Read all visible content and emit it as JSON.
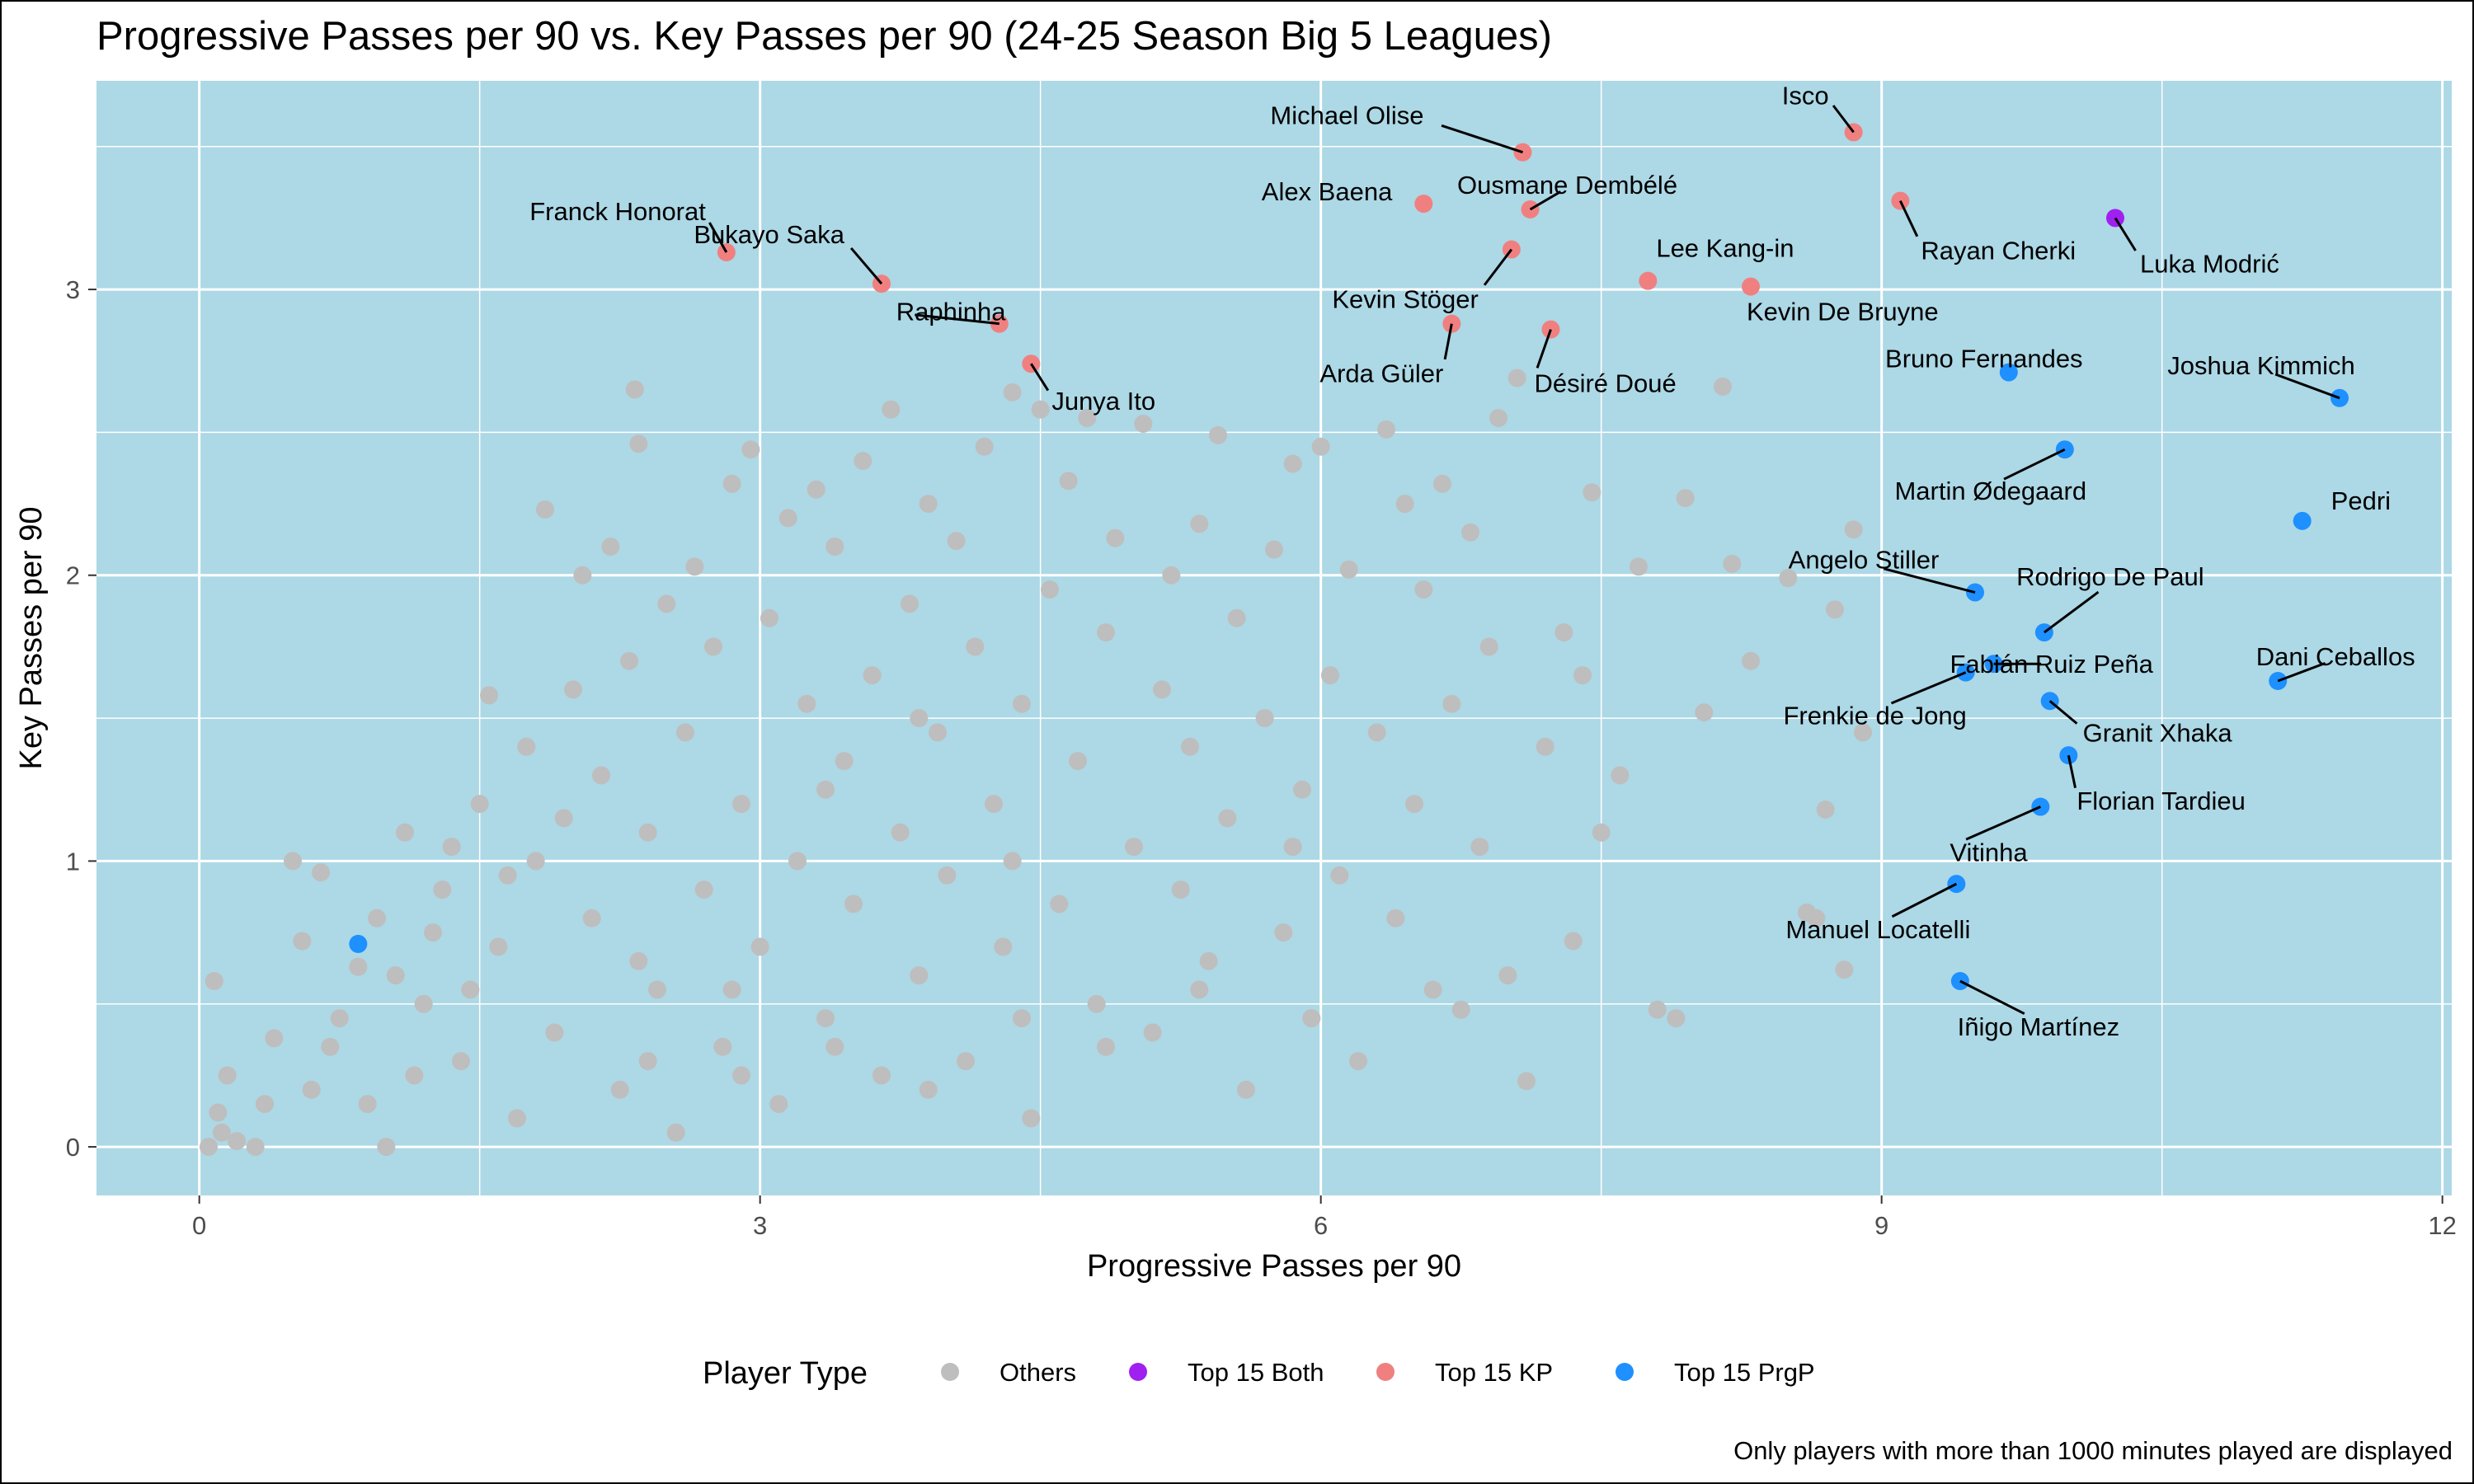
{
  "chart_data": {
    "type": "scatter",
    "title": "Progressive Passes per 90 vs. Key Passes per 90 (24-25 Season Big 5 Leagues)",
    "xlabel": "Progressive Passes per 90",
    "ylabel": "Key Passes per 90",
    "xlim": [
      -0.55,
      12.05
    ],
    "ylim": [
      -0.17,
      3.73
    ],
    "x_ticks": [
      0,
      3,
      6,
      9,
      12
    ],
    "y_ticks": [
      0,
      1,
      2,
      3
    ],
    "grid": true,
    "legend_position": "bottom",
    "legend_title": "Player Type",
    "caption": "Only players with more than 1000 minutes played are displayed",
    "colors": {
      "panel_background": "#add8e6",
      "grid": "#ffffff",
      "Others": "#bebebe",
      "Top 15 Both": "#a020f0",
      "Top 15 KP": "#f08080",
      "Top 15 PrgP": "#1e90ff"
    },
    "series": [
      {
        "name": "Top 15 Both",
        "points": [
          {
            "player": "Luka Modrić",
            "x": 10.25,
            "y": 3.25
          }
        ]
      },
      {
        "name": "Top 15 KP",
        "points": [
          {
            "player": "Michael Olise",
            "x": 7.08,
            "y": 3.48
          },
          {
            "player": "Isco",
            "x": 8.85,
            "y": 3.55
          },
          {
            "player": "Alex Baena",
            "x": 6.55,
            "y": 3.3
          },
          {
            "player": "Ousmane Dembélé",
            "x": 7.12,
            "y": 3.28
          },
          {
            "player": "Rayan Cherki",
            "x": 9.1,
            "y": 3.31
          },
          {
            "player": "Franck Honorat",
            "x": 2.82,
            "y": 3.13
          },
          {
            "player": "Bukayo Saka",
            "x": 3.65,
            "y": 3.02
          },
          {
            "player": "Kevin Stöger",
            "x": 7.02,
            "y": 3.14
          },
          {
            "player": "Lee Kang-in",
            "x": 7.75,
            "y": 3.03
          },
          {
            "player": "Kevin De Bruyne",
            "x": 8.3,
            "y": 3.01
          },
          {
            "player": "Raphinha",
            "x": 4.28,
            "y": 2.88
          },
          {
            "player": "Arda Güler",
            "x": 6.7,
            "y": 2.88
          },
          {
            "player": "Désiré Doué",
            "x": 7.23,
            "y": 2.86
          },
          {
            "player": "Junya Ito",
            "x": 4.45,
            "y": 2.74
          }
        ]
      },
      {
        "name": "Top 15 PrgP",
        "points": [
          {
            "player": "Bruno Fernandes",
            "x": 9.68,
            "y": 2.71
          },
          {
            "player": "Joshua Kimmich",
            "x": 11.45,
            "y": 2.62
          },
          {
            "player": "Martin Ødegaard",
            "x": 9.98,
            "y": 2.44
          },
          {
            "player": "Pedri",
            "x": 11.25,
            "y": 2.19
          },
          {
            "player": "Angelo Stiller",
            "x": 9.5,
            "y": 1.94
          },
          {
            "player": "Rodrigo De Paul",
            "x": 9.87,
            "y": 1.8
          },
          {
            "player": "Fabián Ruiz Peña",
            "x": 9.6,
            "y": 1.69
          },
          {
            "player": "Frenkie de Jong",
            "x": 9.45,
            "y": 1.66
          },
          {
            "player": "Dani Ceballos",
            "x": 11.12,
            "y": 1.63
          },
          {
            "player": "Granit Xhaka",
            "x": 9.9,
            "y": 1.56
          },
          {
            "player": "Florian Tardieu",
            "x": 10.0,
            "y": 1.37
          },
          {
            "player": "Vitinha",
            "x": 9.85,
            "y": 1.19
          },
          {
            "player": "Manuel Locatelli",
            "x": 9.4,
            "y": 0.92
          },
          {
            "player": "Iñigo Martínez",
            "x": 9.42,
            "y": 0.58
          },
          {
            "player": "",
            "x": 0.85,
            "y": 0.71
          }
        ]
      },
      {
        "name": "Others",
        "points": [
          {
            "x": 0.05,
            "y": 0.0
          },
          {
            "x": 0.12,
            "y": 0.05
          },
          {
            "x": 0.2,
            "y": 0.02
          },
          {
            "x": 0.1,
            "y": 0.12
          },
          {
            "x": 0.3,
            "y": 0.0
          },
          {
            "x": 0.08,
            "y": 0.58
          },
          {
            "x": 0.5,
            "y": 1.0
          },
          {
            "x": 0.65,
            "y": 0.96
          },
          {
            "x": 0.85,
            "y": 0.63
          },
          {
            "x": 1.0,
            "y": 0.0
          },
          {
            "x": 0.4,
            "y": 0.38
          },
          {
            "x": 0.6,
            "y": 0.2
          },
          {
            "x": 0.75,
            "y": 0.45
          },
          {
            "x": 0.95,
            "y": 0.8
          },
          {
            "x": 1.1,
            "y": 1.1
          },
          {
            "x": 1.2,
            "y": 0.5
          },
          {
            "x": 1.3,
            "y": 0.9
          },
          {
            "x": 1.4,
            "y": 0.3
          },
          {
            "x": 1.5,
            "y": 1.2
          },
          {
            "x": 1.55,
            "y": 1.58
          },
          {
            "x": 1.6,
            "y": 0.7
          },
          {
            "x": 1.7,
            "y": 0.1
          },
          {
            "x": 1.75,
            "y": 1.4
          },
          {
            "x": 1.8,
            "y": 1.0
          },
          {
            "x": 1.85,
            "y": 2.23
          },
          {
            "x": 1.9,
            "y": 0.4
          },
          {
            "x": 2.0,
            "y": 1.6
          },
          {
            "x": 2.05,
            "y": 2.0
          },
          {
            "x": 2.1,
            "y": 0.8
          },
          {
            "x": 2.15,
            "y": 1.3
          },
          {
            "x": 2.2,
            "y": 2.1
          },
          {
            "x": 2.25,
            "y": 0.2
          },
          {
            "x": 2.3,
            "y": 1.7
          },
          {
            "x": 2.33,
            "y": 2.65
          },
          {
            "x": 2.35,
            "y": 2.46
          },
          {
            "x": 2.4,
            "y": 1.1
          },
          {
            "x": 2.45,
            "y": 0.55
          },
          {
            "x": 2.5,
            "y": 1.9
          },
          {
            "x": 2.55,
            "y": 0.05
          },
          {
            "x": 2.6,
            "y": 1.45
          },
          {
            "x": 2.65,
            "y": 2.03
          },
          {
            "x": 2.7,
            "y": 0.9
          },
          {
            "x": 2.75,
            "y": 1.75
          },
          {
            "x": 2.8,
            "y": 0.35
          },
          {
            "x": 2.85,
            "y": 2.32
          },
          {
            "x": 2.9,
            "y": 1.2
          },
          {
            "x": 2.95,
            "y": 2.44
          },
          {
            "x": 3.0,
            "y": 0.7
          },
          {
            "x": 3.05,
            "y": 1.85
          },
          {
            "x": 3.1,
            "y": 0.15
          },
          {
            "x": 3.15,
            "y": 2.2
          },
          {
            "x": 3.2,
            "y": 1.0
          },
          {
            "x": 3.25,
            "y": 1.55
          },
          {
            "x": 3.3,
            "y": 2.3
          },
          {
            "x": 3.35,
            "y": 0.45
          },
          {
            "x": 3.4,
            "y": 2.1
          },
          {
            "x": 3.45,
            "y": 1.35
          },
          {
            "x": 3.5,
            "y": 0.85
          },
          {
            "x": 3.55,
            "y": 2.4
          },
          {
            "x": 3.6,
            "y": 1.65
          },
          {
            "x": 3.65,
            "y": 0.25
          },
          {
            "x": 3.7,
            "y": 2.58
          },
          {
            "x": 3.75,
            "y": 1.1
          },
          {
            "x": 3.8,
            "y": 1.9
          },
          {
            "x": 3.85,
            "y": 0.6
          },
          {
            "x": 3.9,
            "y": 2.25
          },
          {
            "x": 3.95,
            "y": 1.45
          },
          {
            "x": 4.0,
            "y": 0.95
          },
          {
            "x": 4.05,
            "y": 2.12
          },
          {
            "x": 4.1,
            "y": 0.3
          },
          {
            "x": 4.15,
            "y": 1.75
          },
          {
            "x": 4.2,
            "y": 2.45
          },
          {
            "x": 4.25,
            "y": 1.2
          },
          {
            "x": 4.3,
            "y": 0.7
          },
          {
            "x": 4.35,
            "y": 2.64
          },
          {
            "x": 4.4,
            "y": 1.55
          },
          {
            "x": 4.45,
            "y": 0.1
          },
          {
            "x": 4.5,
            "y": 2.58
          },
          {
            "x": 4.55,
            "y": 1.95
          },
          {
            "x": 4.6,
            "y": 0.85
          },
          {
            "x": 4.65,
            "y": 2.33
          },
          {
            "x": 4.7,
            "y": 1.35
          },
          {
            "x": 4.75,
            "y": 2.55
          },
          {
            "x": 4.8,
            "y": 0.5
          },
          {
            "x": 4.85,
            "y": 1.8
          },
          {
            "x": 4.9,
            "y": 2.13
          },
          {
            "x": 5.0,
            "y": 1.05
          },
          {
            "x": 5.05,
            "y": 2.53
          },
          {
            "x": 5.1,
            "y": 0.4
          },
          {
            "x": 5.15,
            "y": 1.6
          },
          {
            "x": 5.2,
            "y": 2.0
          },
          {
            "x": 5.25,
            "y": 0.9
          },
          {
            "x": 5.3,
            "y": 1.4
          },
          {
            "x": 5.35,
            "y": 2.18
          },
          {
            "x": 5.4,
            "y": 0.65
          },
          {
            "x": 5.45,
            "y": 2.49
          },
          {
            "x": 5.5,
            "y": 1.15
          },
          {
            "x": 5.55,
            "y": 1.85
          },
          {
            "x": 5.6,
            "y": 0.2
          },
          {
            "x": 5.7,
            "y": 1.5
          },
          {
            "x": 5.75,
            "y": 2.09
          },
          {
            "x": 5.8,
            "y": 0.75
          },
          {
            "x": 5.85,
            "y": 2.39
          },
          {
            "x": 5.9,
            "y": 1.25
          },
          {
            "x": 5.95,
            "y": 0.45
          },
          {
            "x": 6.0,
            "y": 2.45
          },
          {
            "x": 6.05,
            "y": 1.65
          },
          {
            "x": 6.1,
            "y": 0.95
          },
          {
            "x": 6.15,
            "y": 2.02
          },
          {
            "x": 6.2,
            "y": 0.3
          },
          {
            "x": 6.3,
            "y": 1.45
          },
          {
            "x": 6.35,
            "y": 2.51
          },
          {
            "x": 6.4,
            "y": 0.8
          },
          {
            "x": 6.45,
            "y": 2.25
          },
          {
            "x": 6.5,
            "y": 1.2
          },
          {
            "x": 6.55,
            "y": 1.95
          },
          {
            "x": 6.6,
            "y": 0.55
          },
          {
            "x": 6.65,
            "y": 2.32
          },
          {
            "x": 6.7,
            "y": 1.55
          },
          {
            "x": 6.75,
            "y": 0.48
          },
          {
            "x": 6.8,
            "y": 2.15
          },
          {
            "x": 6.85,
            "y": 1.05
          },
          {
            "x": 6.9,
            "y": 1.75
          },
          {
            "x": 6.95,
            "y": 2.55
          },
          {
            "x": 7.0,
            "y": 0.6
          },
          {
            "x": 7.05,
            "y": 2.69
          },
          {
            "x": 7.1,
            "y": 0.23
          },
          {
            "x": 7.2,
            "y": 1.4
          },
          {
            "x": 7.3,
            "y": 1.8
          },
          {
            "x": 7.35,
            "y": 0.72
          },
          {
            "x": 7.4,
            "y": 1.65
          },
          {
            "x": 7.45,
            "y": 2.29
          },
          {
            "x": 7.5,
            "y": 1.1
          },
          {
            "x": 7.6,
            "y": 1.3
          },
          {
            "x": 7.7,
            "y": 2.03
          },
          {
            "x": 7.8,
            "y": 0.48
          },
          {
            "x": 7.9,
            "y": 0.45
          },
          {
            "x": 7.95,
            "y": 2.27
          },
          {
            "x": 8.05,
            "y": 1.52
          },
          {
            "x": 8.15,
            "y": 2.66
          },
          {
            "x": 8.2,
            "y": 2.04
          },
          {
            "x": 8.3,
            "y": 1.7
          },
          {
            "x": 8.5,
            "y": 1.99
          },
          {
            "x": 8.65,
            "y": 0.8
          },
          {
            "x": 8.7,
            "y": 1.18
          },
          {
            "x": 8.75,
            "y": 1.88
          },
          {
            "x": 8.8,
            "y": 0.62
          },
          {
            "x": 8.85,
            "y": 2.16
          },
          {
            "x": 8.9,
            "y": 1.45
          },
          {
            "x": 8.6,
            "y": 0.82
          },
          {
            "x": 0.15,
            "y": 0.25
          },
          {
            "x": 0.35,
            "y": 0.15
          },
          {
            "x": 0.55,
            "y": 0.72
          },
          {
            "x": 0.7,
            "y": 0.35
          },
          {
            "x": 0.9,
            "y": 0.15
          },
          {
            "x": 1.05,
            "y": 0.6
          },
          {
            "x": 1.15,
            "y": 0.25
          },
          {
            "x": 1.25,
            "y": 0.75
          },
          {
            "x": 1.35,
            "y": 1.05
          },
          {
            "x": 1.45,
            "y": 0.55
          },
          {
            "x": 1.65,
            "y": 0.95
          },
          {
            "x": 1.95,
            "y": 1.15
          },
          {
            "x": 2.35,
            "y": 0.65
          },
          {
            "x": 2.85,
            "y": 0.55
          },
          {
            "x": 3.35,
            "y": 1.25
          },
          {
            "x": 3.85,
            "y": 1.5
          },
          {
            "x": 4.35,
            "y": 1.0
          },
          {
            "x": 4.85,
            "y": 0.35
          },
          {
            "x": 5.35,
            "y": 0.55
          },
          {
            "x": 5.85,
            "y": 1.05
          },
          {
            "x": 2.4,
            "y": 0.3
          },
          {
            "x": 2.9,
            "y": 0.25
          },
          {
            "x": 3.4,
            "y": 0.35
          },
          {
            "x": 3.9,
            "y": 0.2
          },
          {
            "x": 4.4,
            "y": 0.45
          }
        ]
      }
    ]
  }
}
